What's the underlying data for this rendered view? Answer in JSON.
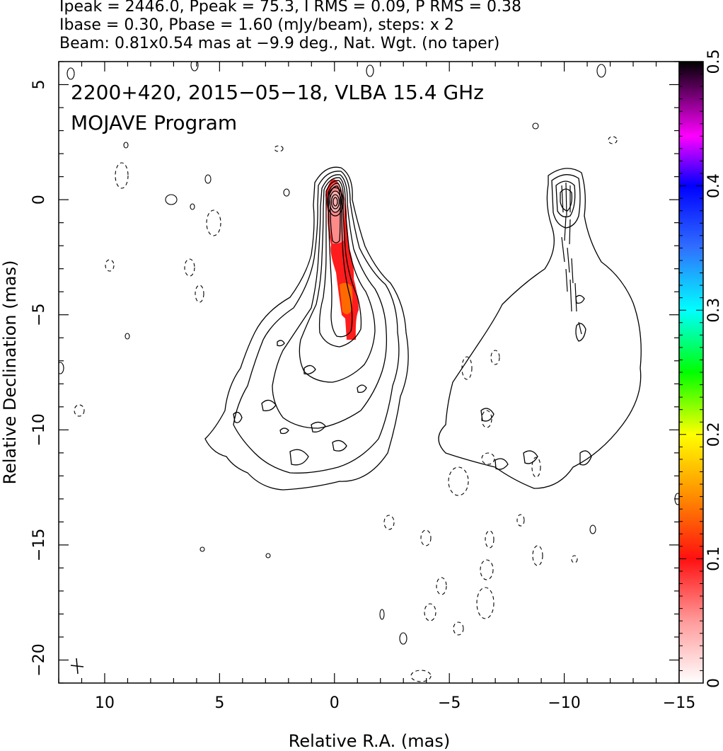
{
  "header": {
    "line1": "Ipeak = 2446.0, Ppeak = 75.3, I RMS = 0.09, P RMS = 0.38",
    "line2": "Ibase = 0.30, Pbase = 1.60 (mJy/beam), steps: x 2",
    "line3": "Beam: 0.81x0.54 mas at −9.9 deg., Nat. Wgt. (no taper)"
  },
  "plot": {
    "label1": "2200+420, 2015−05−18, VLBA 15.4 GHz",
    "label2": "MOJAVE Program"
  },
  "chart_data": {
    "type": "heatmap",
    "title": "2200+420, 2015−05−18, VLBA 15.4 GHz",
    "subtitle": "MOJAVE Program",
    "xlabel": "Relative R.A. (mas)",
    "ylabel": "Relative Declination (mas)",
    "xlim": [
      12,
      -15
    ],
    "ylim": [
      -21,
      6
    ],
    "xticks": [
      {
        "value": 10,
        "label": "10"
      },
      {
        "value": 5,
        "label": "5"
      },
      {
        "value": 0,
        "label": "0"
      },
      {
        "value": -5,
        "label": "−5"
      },
      {
        "value": -10,
        "label": "−10"
      },
      {
        "value": -15,
        "label": "−15"
      }
    ],
    "yticks": [
      {
        "value": 5,
        "label": "5"
      },
      {
        "value": 0,
        "label": "0"
      },
      {
        "value": -5,
        "label": "−5"
      },
      {
        "value": -10,
        "label": "−10"
      },
      {
        "value": -15,
        "label": "−15"
      },
      {
        "value": -20,
        "label": "−20"
      }
    ],
    "colorbar": {
      "min": 0,
      "max": 0.5,
      "ticks": [
        {
          "value": 0,
          "label": "0"
        },
        {
          "value": 0.1,
          "label": "0.1"
        },
        {
          "value": 0.2,
          "label": "0.2"
        },
        {
          "value": 0.3,
          "label": "0.3"
        },
        {
          "value": 0.4,
          "label": "0.4"
        },
        {
          "value": 0.5,
          "label": "0.5"
        }
      ],
      "colors": [
        "#ffffff",
        "#ff3030",
        "#ff8c00",
        "#ffff00",
        "#00ff00",
        "#00ffff",
        "#0000ff",
        "#ff00ff",
        "#000000"
      ]
    },
    "total_intensity": {
      "peak_position": [
        0.0,
        0.0
      ],
      "contour_levels_mJy_per_beam": [
        0.3,
        0.6,
        1.2,
        2.4,
        4.8,
        9.6,
        19.2,
        38.4,
        76.8,
        153.6,
        307.2,
        614.4,
        1228.8
      ],
      "jet_direction": "south",
      "jet_extent_y": [
        1.4,
        -12.5
      ]
    },
    "polarization": {
      "panel_offset_x": -10,
      "fractional_pol_extent_y": [
        0.3,
        -6.1
      ],
      "fractional_pol_range": [
        0.05,
        0.12
      ]
    }
  }
}
